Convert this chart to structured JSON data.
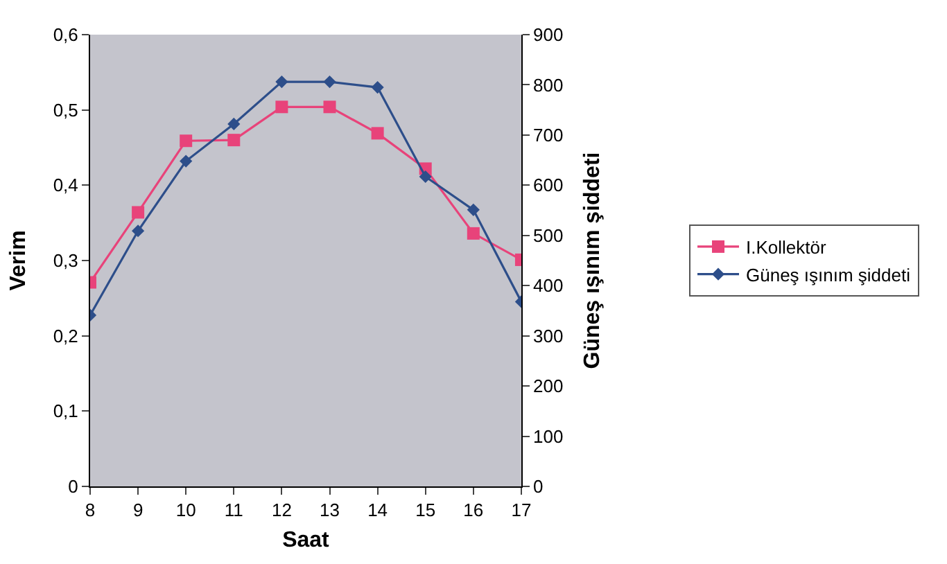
{
  "chart_data": {
    "type": "line",
    "xlabel": "Saat",
    "ylabel": "Verim",
    "y2label": "Güneş ışınım şiddeti",
    "categories": [
      "8",
      "9",
      "10",
      "11",
      "12",
      "13",
      "14",
      "15",
      "16",
      "17"
    ],
    "series": [
      {
        "name": "I.Kollektör",
        "color": "#e8437a",
        "marker": "square",
        "values": [
          0.271,
          0.364,
          0.459,
          0.46,
          0.504,
          0.504,
          0.469,
          0.422,
          0.336,
          0.301
        ]
      },
      {
        "name": "Güneş ışınım şiddeti",
        "color": "#2d4e8a",
        "marker": "diamond",
        "axis": "y2",
        "values": [
          341,
          509,
          648,
          722,
          806,
          806,
          795,
          617,
          551,
          368
        ]
      }
    ],
    "ylim": [
      0,
      0.6
    ],
    "yticks": [
      {
        "value": 0,
        "label": "0"
      },
      {
        "value": 0.1,
        "label": "0,1"
      },
      {
        "value": 0.2,
        "label": "0,2"
      },
      {
        "value": 0.3,
        "label": "0,3"
      },
      {
        "value": 0.4,
        "label": "0,4"
      },
      {
        "value": 0.5,
        "label": "0,5"
      },
      {
        "value": 0.6,
        "label": "0,6"
      }
    ],
    "y2lim": [
      0,
      900
    ],
    "y2ticks": [
      0,
      100,
      200,
      300,
      400,
      500,
      600,
      700,
      800,
      900
    ],
    "legend": "right",
    "grid": false
  }
}
